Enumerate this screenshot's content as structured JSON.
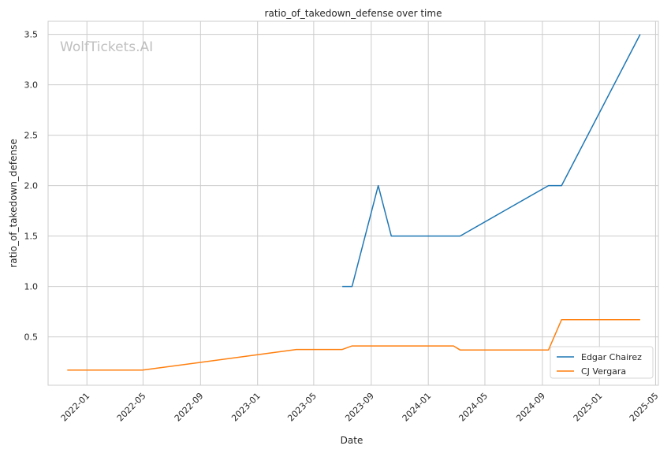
{
  "watermark": "WolfTickets.AI",
  "chart_data": {
    "type": "line",
    "title": "ratio_of_takedown_defense over time",
    "xlabel": "Date",
    "ylabel": "ratio_of_takedown_defense",
    "x_type": "date",
    "xlim": [
      "2021-10-10",
      "2025-05-07"
    ],
    "ylim": [
      0.02,
      3.63
    ],
    "x_ticks": [
      "2022-01",
      "2022-05",
      "2022-09",
      "2023-01",
      "2023-05",
      "2023-09",
      "2024-01",
      "2024-05",
      "2024-09",
      "2025-01",
      "2025-05"
    ],
    "y_ticks": [
      "0.5",
      "1.0",
      "1.5",
      "2.0",
      "2.5",
      "3.0",
      "3.5"
    ],
    "grid": true,
    "legend_position": "bottom-right",
    "colors": {
      "Edgar Chairez": "#1f77b4",
      "CJ Vergara": "#ff7f0e"
    },
    "series": [
      {
        "name": "Edgar Chairez",
        "points": [
          [
            "2023-07-01",
            1.0
          ],
          [
            "2023-07-22",
            1.0
          ],
          [
            "2023-09-16",
            2.0
          ],
          [
            "2023-10-14",
            1.5
          ],
          [
            "2024-03-09",
            1.5
          ],
          [
            "2024-09-14",
            2.0
          ],
          [
            "2024-10-12",
            2.0
          ],
          [
            "2025-03-29",
            3.5
          ]
        ]
      },
      {
        "name": "CJ Vergara",
        "points": [
          [
            "2021-11-20",
            0.17
          ],
          [
            "2022-04-30",
            0.17
          ],
          [
            "2023-03-25",
            0.375
          ],
          [
            "2023-07-01",
            0.375
          ],
          [
            "2023-07-22",
            0.41
          ],
          [
            "2024-02-24",
            0.41
          ],
          [
            "2024-03-09",
            0.37
          ],
          [
            "2024-09-14",
            0.37
          ],
          [
            "2024-10-12",
            0.67
          ],
          [
            "2025-03-29",
            0.67
          ]
        ]
      }
    ]
  }
}
